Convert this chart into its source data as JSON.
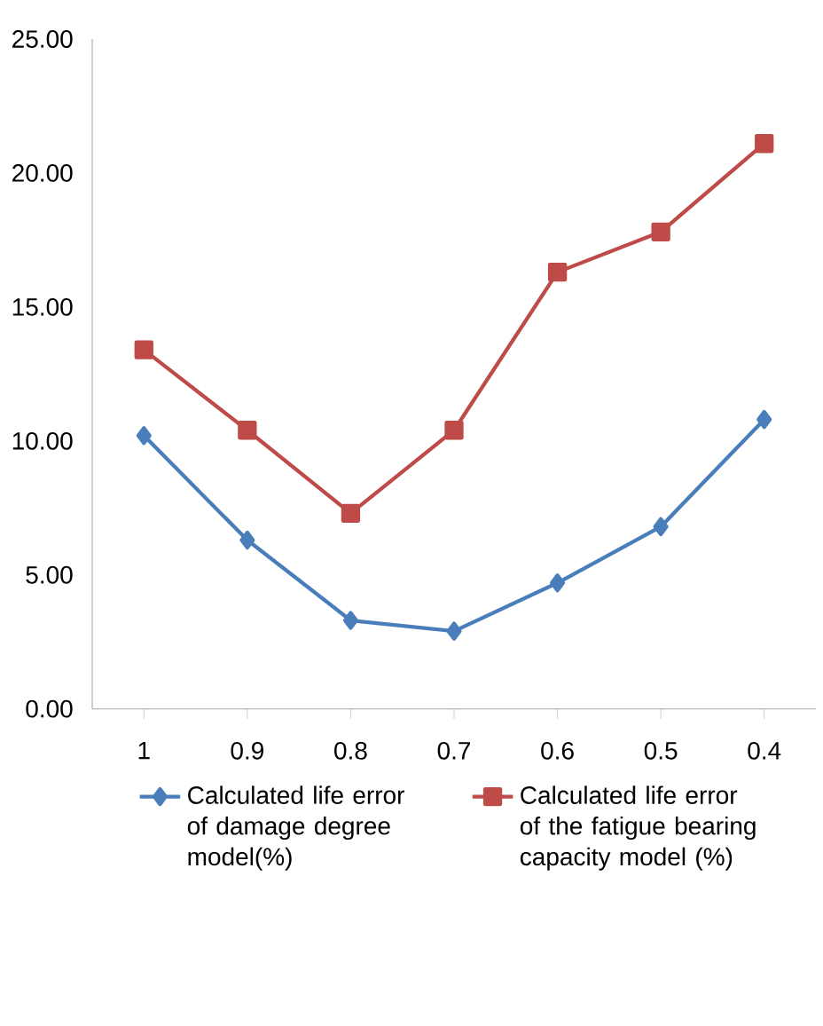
{
  "chart_data": {
    "type": "line",
    "categories": [
      "1",
      "0.9",
      "0.8",
      "0.7",
      "0.6",
      "0.5",
      "0.4"
    ],
    "series": [
      {
        "name": "Calculated life error of damage degree model(%)",
        "color": "#4a7ebb",
        "marker": "diamond",
        "values": [
          10.2,
          6.3,
          3.3,
          2.9,
          4.7,
          6.8,
          10.8
        ]
      },
      {
        "name": "Calculated life error of the fatigue bearing capacity model (%)",
        "color": "#be4b48",
        "marker": "square",
        "values": [
          13.4,
          10.4,
          7.3,
          10.4,
          16.3,
          17.8,
          21.1
        ]
      }
    ],
    "ylim": [
      0,
      25
    ],
    "yticks": [
      {
        "value": 0,
        "label": "0.00"
      },
      {
        "value": 5,
        "label": "5.00"
      },
      {
        "value": 10,
        "label": "10.00"
      },
      {
        "value": 15,
        "label": "15.00"
      },
      {
        "value": 20,
        "label": "20.00"
      },
      {
        "value": 25,
        "label": "25.00"
      }
    ],
    "grid": false,
    "legend": "bottom",
    "line_style": "solid"
  }
}
